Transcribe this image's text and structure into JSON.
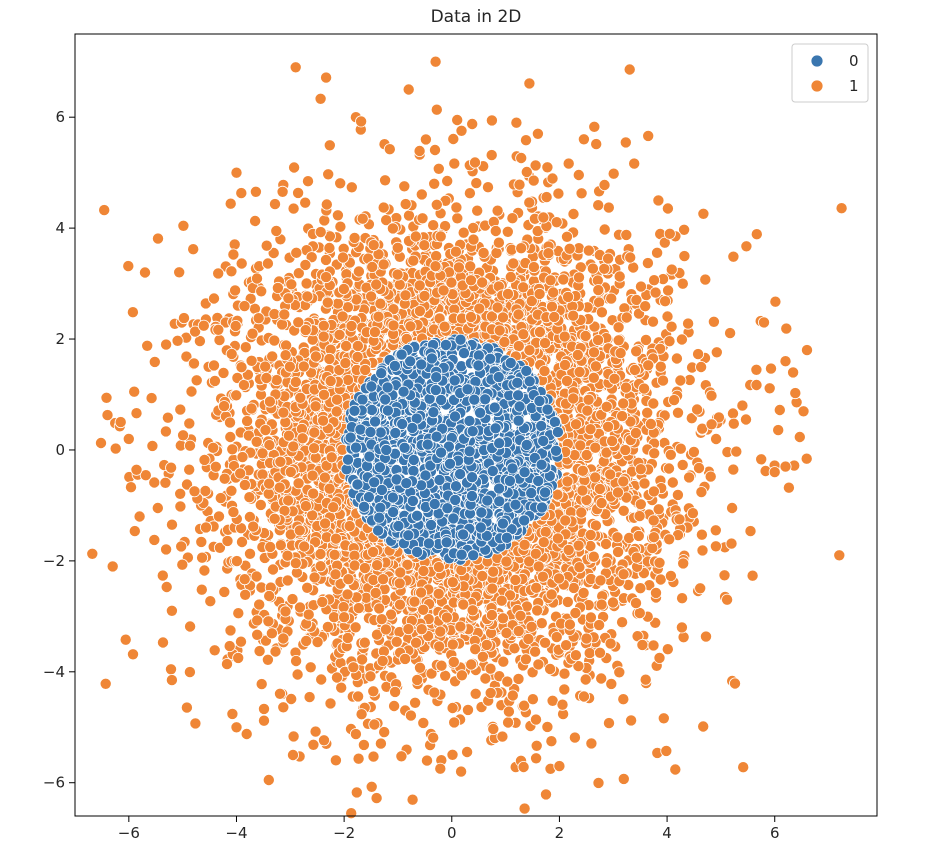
{
  "chart_data": {
    "type": "scatter",
    "title": "Data in 2D",
    "xlabel": "",
    "ylabel": "",
    "xlim": [
      -7.0,
      7.9
    ],
    "ylim": [
      -6.6,
      7.5
    ],
    "xticks": [
      -6,
      -4,
      -2,
      0,
      2,
      4,
      6
    ],
    "yticks": [
      -6,
      -4,
      -2,
      0,
      2,
      4,
      6
    ],
    "xtick_labels": [
      "−6",
      "−4",
      "−2",
      "0",
      "2",
      "4",
      "6"
    ],
    "ytick_labels": [
      "−6",
      "−4",
      "−2",
      "0",
      "2",
      "4",
      "6"
    ],
    "grid": false,
    "legend": {
      "placement": "top-right",
      "entries": [
        "0",
        "1"
      ]
    },
    "series": [
      {
        "name": "0",
        "color": "#3a76af",
        "description_shape": "disk",
        "radius": 2.0,
        "center": [
          0,
          0
        ],
        "count": 1700
      },
      {
        "name": "1",
        "color": "#ef8636",
        "description_shape": "gaussian-ring",
        "inner_radius": 2.0,
        "sigma": 2.0,
        "center": [
          0,
          0
        ],
        "count": 4300,
        "outliers": [
          [
            -6.3,
            -2.1
          ],
          [
            7.2,
            -1.9
          ],
          [
            -3.4,
            -5.95
          ],
          [
            -0.3,
            7.0
          ],
          [
            -2.9,
            6.9
          ],
          [
            -0.8,
            6.5
          ],
          [
            6.6,
            1.8
          ],
          [
            6.2,
            1.6
          ],
          [
            -5.9,
            1.05
          ],
          [
            -5.7,
            3.2
          ],
          [
            -5.2,
            -4.15
          ],
          [
            5.8,
            2.3
          ],
          [
            2.0,
            -5.7
          ],
          [
            -4.0,
            5.0
          ],
          [
            -4.0,
            -5.0
          ],
          [
            -2.95,
            -5.5
          ],
          [
            1.2,
            5.9
          ],
          [
            -6.0,
            0.2
          ],
          [
            6.2,
            -0.3
          ],
          [
            -5.8,
            -1.2
          ],
          [
            0.1,
            5.95
          ],
          [
            1.6,
            5.7
          ],
          [
            6.0,
            -0.4
          ],
          [
            5.4,
            0.8
          ],
          [
            -5.2,
            -2.9
          ]
        ]
      }
    ]
  }
}
